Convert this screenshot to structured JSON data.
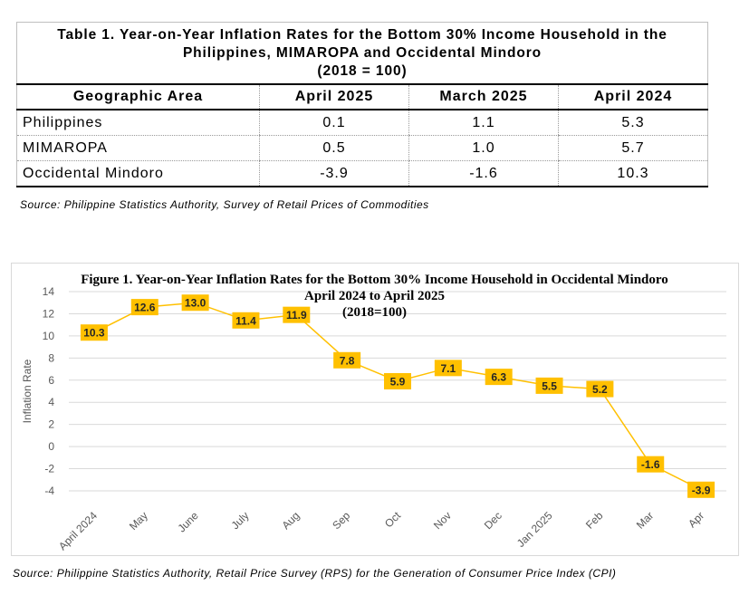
{
  "table": {
    "title_line1": "Table 1. Year-on-Year Inflation Rates for the Bottom 30% Income Household in the",
    "title_line2": "Philippines, MIMAROPA and Occidental Mindoro",
    "title_line3": "(2018 = 100)",
    "headers": [
      "Geographic Area",
      "April 2025",
      "March 2025",
      "April 2024"
    ],
    "rows": [
      {
        "area": "Philippines",
        "apr2025": "0.1",
        "mar2025": "1.1",
        "apr2024": "5.3"
      },
      {
        "area": "MIMAROPA",
        "apr2025": "0.5",
        "mar2025": "1.0",
        "apr2024": "5.7"
      },
      {
        "area": "Occidental Mindoro",
        "apr2025": "-3.9",
        "mar2025": "-1.6",
        "apr2024": "10.3"
      }
    ],
    "source": "Source: Philippine Statistics Authority, Survey of Retail Prices of Commodities"
  },
  "chart_data": {
    "type": "line",
    "title_line1": "Figure 1. Year-on-Year Inflation Rates for the Bottom 30% Income Household in Occidental Mindoro",
    "title_line2": "April 2024 to April 2025",
    "title_line3": "(2018=100)",
    "xlabel": "",
    "ylabel": "Inflation Rate",
    "categories": [
      "April 2024",
      "May",
      "June",
      "July",
      "Aug",
      "Sep",
      "Oct",
      "Nov",
      "Dec",
      "Jan 2025",
      "Feb",
      "Mar",
      "Apr"
    ],
    "values": [
      10.3,
      12.6,
      13.0,
      11.4,
      11.9,
      7.8,
      5.9,
      7.1,
      6.3,
      5.5,
      5.2,
      -1.6,
      -3.9
    ],
    "data_labels": [
      "10.3",
      "12.6",
      "13.0",
      "11.4",
      "11.9",
      "7.8",
      "5.9",
      "7.1",
      "6.3",
      "5.5",
      "5.2",
      "-1.6",
      "-3.9"
    ],
    "ylim": [
      -4,
      14
    ],
    "yticks": [
      "14",
      "12",
      "10",
      "8",
      "6",
      "4",
      "2",
      "0",
      "-2",
      "-4"
    ],
    "grid": true,
    "legend": "none",
    "line_color": "#FFC000",
    "label_fill": "#FFC000"
  },
  "figure_source": "Source: Philippine Statistics Authority, Retail Price Survey (RPS) for the Generation of Consumer Price Index (CPI)"
}
